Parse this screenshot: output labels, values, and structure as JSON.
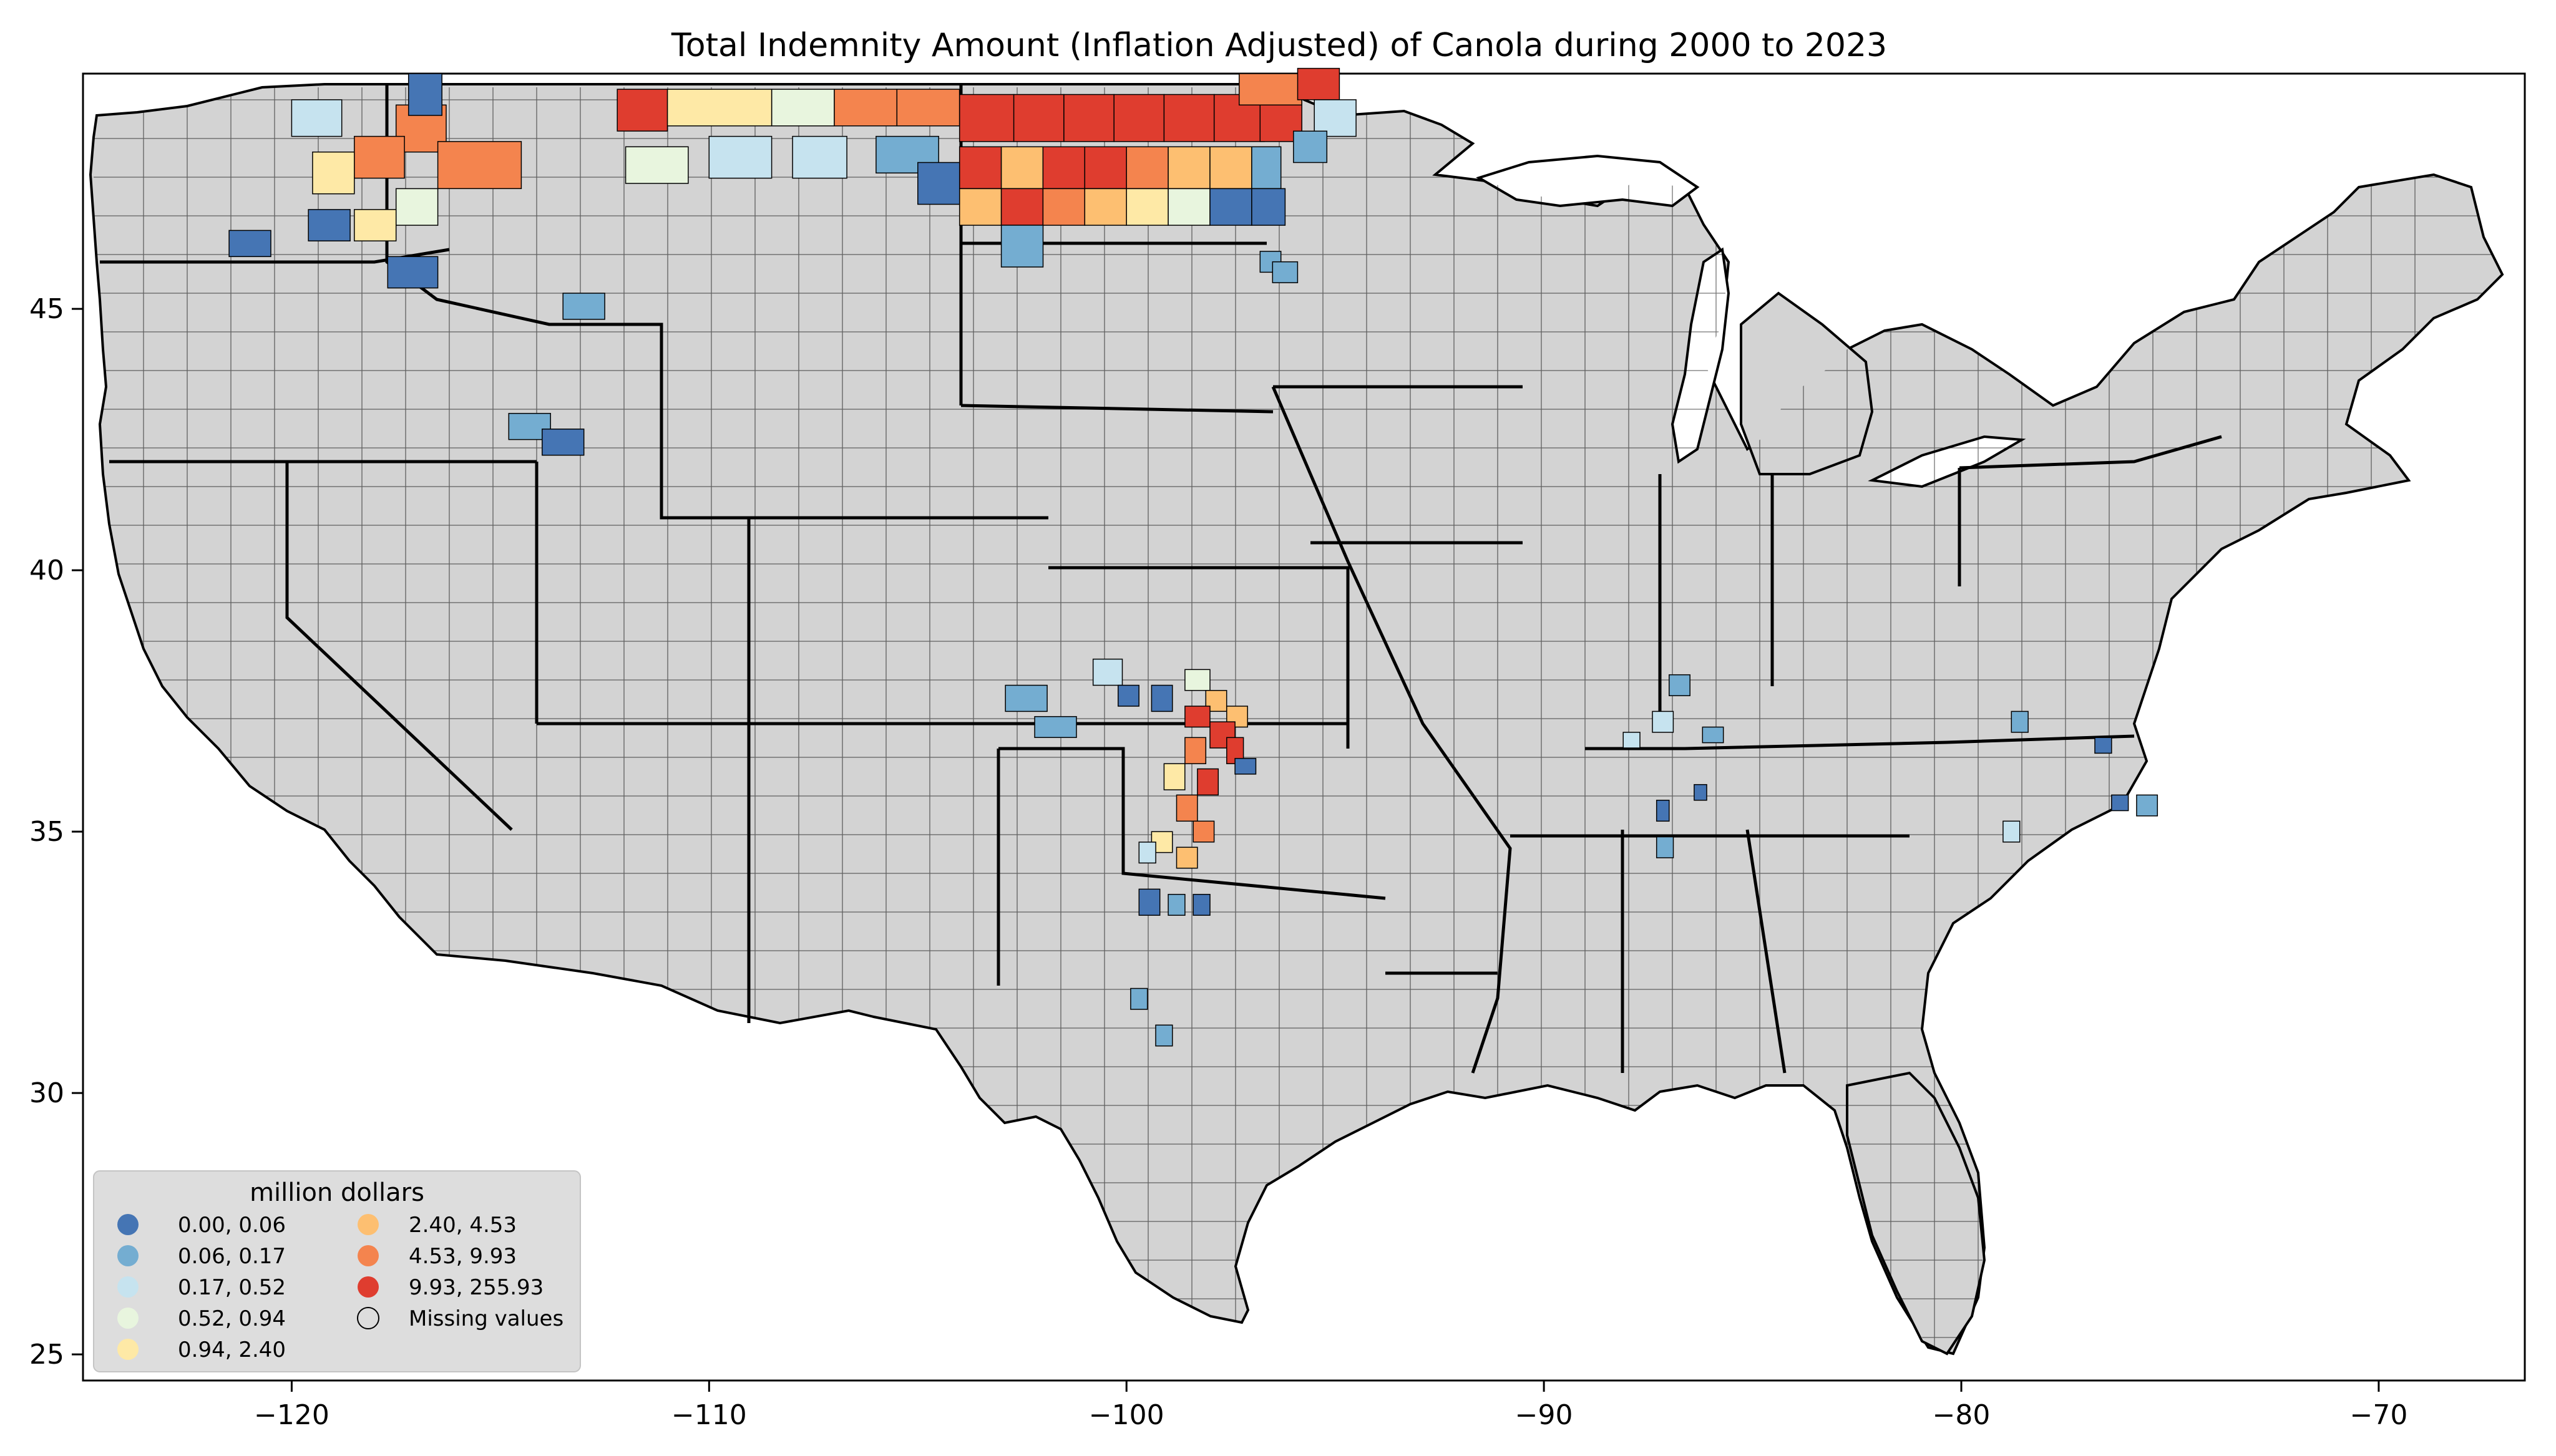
{
  "map": {
    "title": "Total Indemnity Amount  (Inflation Adjusted) of Canola during 2000 to 2023",
    "lon_range": [
      -125,
      -66.5
    ],
    "lat_range": [
      24.5,
      49.5
    ],
    "x_ticks": [
      "−120",
      "−110",
      "−100",
      "−90",
      "−80",
      "−70"
    ],
    "y_ticks": [
      "25",
      "30",
      "35",
      "40",
      "45"
    ],
    "missing_color": "#d3d3d3",
    "border_color": "#000000",
    "legend": {
      "title": "million dollars",
      "placement": "lower-left",
      "items": [
        {
          "label": "0.00,   0.06",
          "color": "#4575b4"
        },
        {
          "label": "0.06,   0.17",
          "color": "#74add1"
        },
        {
          "label": "0.17,   0.52",
          "color": "#c6e3ef"
        },
        {
          "label": "0.52,   0.94",
          "color": "#e8f5de"
        },
        {
          "label": "0.94,   2.40",
          "color": "#fee9a6"
        },
        {
          "label": "2.40,   4.53",
          "color": "#fdbf71"
        },
        {
          "label": "4.53,   9.93",
          "color": "#f4844e"
        },
        {
          "label": "9.93, 255.93",
          "color": "#df3d2f"
        },
        {
          "label": "Missing values",
          "color": "#d3d3d3"
        }
      ]
    }
  },
  "chart_data": {
    "type": "choropleth",
    "title": "Total Indemnity Amount  (Inflation Adjusted) of Canola during 2000 to 2023",
    "unit": "million dollars",
    "xlim": [
      -125,
      -66.5
    ],
    "ylim": [
      24.5,
      49.5
    ],
    "x_ticks": [
      -120,
      -110,
      -100,
      -90,
      -80,
      -70
    ],
    "y_ticks": [
      25,
      30,
      35,
      40,
      45
    ],
    "bins": [
      [
        0.0,
        0.06
      ],
      [
        0.06,
        0.17
      ],
      [
        0.17,
        0.52
      ],
      [
        0.52,
        0.94
      ],
      [
        0.94,
        2.4
      ],
      [
        2.4,
        4.53
      ],
      [
        4.53,
        9.93
      ],
      [
        9.93,
        255.93
      ]
    ]
  }
}
